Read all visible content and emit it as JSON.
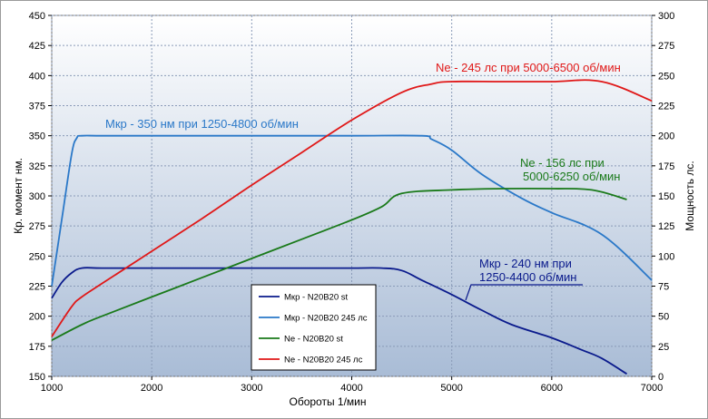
{
  "chart_data": {
    "type": "line",
    "xlabel": "Обороты 1/мин",
    "ylabel_left": "Кр. момент нм.",
    "ylabel_right": "Мощность лс.",
    "xlim": [
      1000,
      7000
    ],
    "ylim_left": [
      150,
      450
    ],
    "ylim_right": [
      0,
      300
    ],
    "xticks": [
      "1000",
      "2000",
      "3000",
      "4000",
      "5000",
      "6000",
      "7000"
    ],
    "yticks_left": [
      "150",
      "175",
      "200",
      "225",
      "250",
      "275",
      "300",
      "325",
      "350",
      "375",
      "400",
      "425",
      "450"
    ],
    "yticks_right": [
      "0",
      "25",
      "50",
      "75",
      "100",
      "125",
      "150",
      "175",
      "200",
      "225",
      "250",
      "275",
      "300"
    ],
    "grid": true,
    "legend_position": "bottom-center",
    "series": [
      {
        "name": "Мкр - N20B20 st",
        "axis": "left",
        "color": "#0a1a8c",
        "x": [
          1000,
          1100,
          1200,
          1300,
          1500,
          2000,
          2500,
          3000,
          3500,
          4000,
          4300,
          4500,
          4700,
          5000,
          5300,
          5600,
          6000,
          6300,
          6500,
          6750
        ],
        "y": [
          215,
          228,
          236,
          240,
          240,
          240,
          240,
          240,
          240,
          240,
          240,
          238,
          230,
          218,
          205,
          193,
          182,
          172,
          165,
          152
        ]
      },
      {
        "name": "Мкр - N20B20 245 лс",
        "axis": "left",
        "color": "#2a78c8",
        "x": [
          1000,
          1100,
          1200,
          1250,
          1300,
          1500,
          2000,
          3000,
          4000,
          4700,
          4800,
          5000,
          5300,
          5700,
          6000,
          6500,
          7000
        ],
        "y": [
          225,
          280,
          335,
          348,
          350,
          350,
          350,
          350,
          350,
          350,
          347,
          338,
          318,
          298,
          286,
          268,
          230
        ]
      },
      {
        "name": "Ne  -  N20B20 st",
        "axis": "right",
        "color": "#1a7a1a",
        "x": [
          1000,
          1300,
          1500,
          2000,
          2500,
          3000,
          3500,
          4000,
          4300,
          4500,
          5000,
          5500,
          6000,
          6400,
          6750
        ],
        "y": [
          30,
          43,
          50,
          66,
          82,
          98,
          114,
          130,
          141,
          152,
          155,
          156,
          156,
          155,
          147
        ]
      },
      {
        "name": "Ne - N20B20 245 лс",
        "axis": "right",
        "color": "#e01818",
        "x": [
          1000,
          1200,
          1300,
          1500,
          2000,
          2500,
          3000,
          3500,
          4000,
          4500,
          4800,
          5000,
          5500,
          6000,
          6500,
          7000
        ],
        "y": [
          33,
          58,
          66,
          77,
          104,
          131,
          159,
          186,
          213,
          236,
          243,
          245,
          245,
          245,
          245,
          229
        ]
      }
    ],
    "annotations": [
      {
        "text": "Мкр - 350 нм при 1250-4800 об/мин",
        "color": "#2a78c8"
      },
      {
        "text": "Ne - 245 лс при 5000-6500 об/мин",
        "color": "#e01818"
      },
      {
        "text": "Ne - 156 лс при",
        "color": "#1a7a1a"
      },
      {
        "text": "5000-6250 об/мин",
        "color": "#1a7a1a"
      },
      {
        "text": "Мкр - 240 нм при",
        "color": "#0a1a8c"
      },
      {
        "text": "1250-4400 об/мин",
        "color": "#0a1a8c"
      }
    ]
  }
}
